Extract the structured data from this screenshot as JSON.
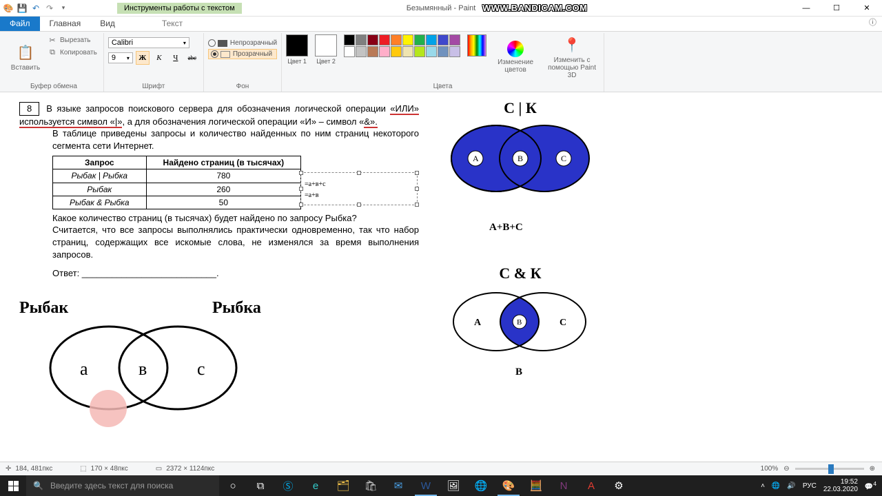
{
  "title": "Безымянный - Paint",
  "watermark": "WWW.BANDICAM.COM",
  "textToolsTab": "Инструменты работы с текстом",
  "tabs": {
    "file": "Файл",
    "home": "Главная",
    "view": "Вид",
    "text": "Текст"
  },
  "winbtns": {
    "min": "—",
    "max": "☐",
    "close": "✕"
  },
  "ribbon": {
    "clipboard": {
      "label": "Буфер обмена",
      "paste": "Вставить",
      "cut": "Вырезать",
      "copy": "Копировать"
    },
    "font": {
      "label": "Шрифт",
      "name": "Calibri",
      "size": "9",
      "bold": "Ж",
      "italic": "К",
      "underline": "Ч",
      "strike": "abc"
    },
    "bg": {
      "label": "Фон",
      "opaque": "Непрозрачный",
      "transparent": "Прозрачный"
    },
    "colors": {
      "label": "Цвета",
      "c1": "Цвет 1",
      "c2": "Цвет 2",
      "c1val": "#000000",
      "c2val": "#ffffff",
      "palette": [
        "#000000",
        "#7f7f7f",
        "#880015",
        "#ed1c24",
        "#ff7f27",
        "#fff200",
        "#22b14c",
        "#00a2e8",
        "#3f48cc",
        "#a349a4",
        "#ffffff",
        "#c3c3c3",
        "#b97a57",
        "#ffaec9",
        "#ffc90e",
        "#efe4b0",
        "#b5e61d",
        "#99d9ea",
        "#7092be",
        "#c8bfe7"
      ],
      "edit": "Изменение цветов",
      "paint3d": "Изменить с помощью Paint 3D"
    }
  },
  "problem": {
    "num": "8",
    "p1a": "В языке запросов поискового сервера для обозначения логической операции",
    "p1b": "«ИЛИ» используется символ «|»",
    "p1c": ", а для обозначения логической операции «И» – символ «",
    "p1d": "&».",
    "p2": "В таблице приведены запросы и количество найденных по ним страниц некоторого сегмента сети Интернет.",
    "th1": "Запрос",
    "th2": "Найдено страниц (в тысячах)",
    "r1q": "Рыбак | Рыбка",
    "r1v": "780",
    "r2q": "Рыбак",
    "r2v": "260",
    "r3q": "Рыбак & Рыбка",
    "r3v": "50",
    "p3": "Какое количество страниц (в тысячах) будет найдено по запросу Рыбка?",
    "p4": "Считается, что все запросы выполнялись практически одновременно, так что набор страниц, содержащих все искомые слова, не изменялся за время выполнения запросов.",
    "ans": "Ответ: ___________________________.",
    "ann1": "=а+в+с",
    "ann2": "=а+в"
  },
  "venn": {
    "left": {
      "t1": "Рыбак",
      "t2": "Рыбка",
      "a": "а",
      "b": "в",
      "c": "с"
    },
    "top": {
      "title": "С | К",
      "a": "A",
      "b": "B",
      "c": "C",
      "sub": "A+B+C",
      "fill": "#2933c8"
    },
    "bot": {
      "title": "С & К",
      "a": "A",
      "b": "B",
      "c": "C",
      "sub": "B",
      "fill": "#2933c8"
    }
  },
  "status": {
    "pos": "184, 481пкс",
    "sel": "170 × 48пкс",
    "size": "2372 × 1124пкс",
    "zoom": "100%"
  },
  "taskbar": {
    "searchPlaceholder": "Введите здесь текст для поиска",
    "lang": "РУС",
    "time": "19:52",
    "date": "22.03.2020",
    "notif": "4"
  }
}
